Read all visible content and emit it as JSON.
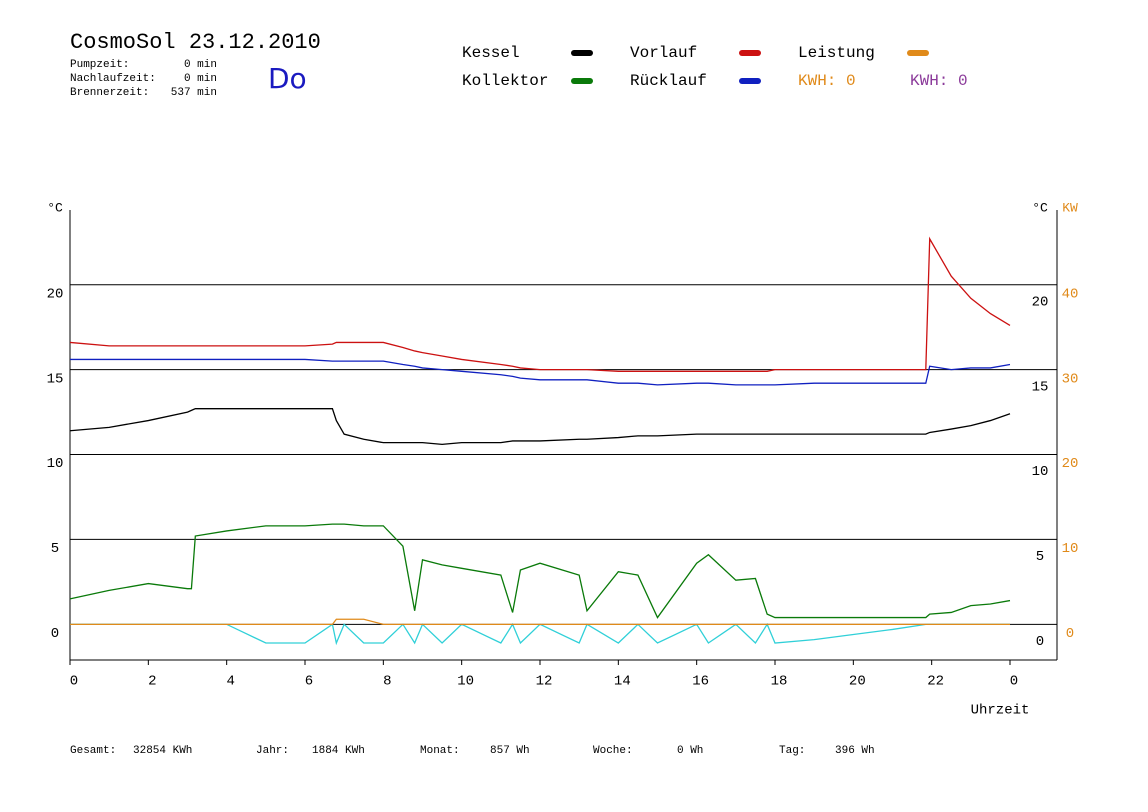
{
  "header": {
    "title": "CosmoSol 23.12.2010",
    "day": "Do",
    "stats": [
      {
        "label": "Pumpzeit:",
        "value": "0 min"
      },
      {
        "label": "Nachlaufzeit:",
        "value": "0 min"
      },
      {
        "label": "Brennerzeit:",
        "value": "537 min"
      }
    ]
  },
  "footer": [
    {
      "label": "Gesamt:",
      "value": "32854 KWh"
    },
    {
      "label": "Jahr:",
      "value": "1884 KWh"
    },
    {
      "label": "Monat:",
      "value": "857 Wh"
    },
    {
      "label": "Woche:",
      "value": "0 Wh"
    },
    {
      "label": "Tag:",
      "value": "396 Wh"
    }
  ],
  "kwh_labels": [
    {
      "text": "KWH: 0",
      "color": "#e08a1a"
    },
    {
      "text": "KWH: 0",
      "color": "#8b3a9a"
    }
  ],
  "chart_data": {
    "type": "line",
    "ylabel": "°C",
    "y2label_left": "°C",
    "y2label": "KW",
    "xlabel": "Uhrzeit",
    "x": [
      0,
      1,
      2,
      3,
      3.1,
      3.2,
      4,
      5,
      6,
      6.7,
      6.8,
      7,
      7.5,
      8,
      8.5,
      8.8,
      9,
      9.5,
      10,
      11,
      11.3,
      11.5,
      12,
      13,
      13.2,
      14,
      14.5,
      15,
      16,
      16.3,
      17,
      17.5,
      17.8,
      18,
      19,
      20,
      21,
      21.85,
      21.95,
      22.5,
      23,
      23.5,
      24
    ],
    "xlim": [
      0,
      25.2
    ],
    "xticks": [
      0,
      2,
      4,
      6,
      8,
      10,
      12,
      14,
      16,
      18,
      20,
      22,
      {
        "value": 24,
        "label": "0"
      }
    ],
    "ylim": [
      -2.1,
      24.4
    ],
    "yticks": [
      0,
      5,
      10,
      15,
      20
    ],
    "y2lim": [
      -4.2,
      48.8
    ],
    "y2ticks": [
      0,
      10,
      20,
      30,
      40
    ],
    "y2color": "#e08a1a",
    "grid": true,
    "series": [
      {
        "name": "Kessel",
        "color": "#000000",
        "values": [
          11.4,
          11.6,
          12.0,
          12.5,
          12.6,
          12.7,
          12.7,
          12.7,
          12.7,
          12.7,
          12.0,
          11.2,
          10.9,
          10.7,
          10.7,
          10.7,
          10.7,
          10.6,
          10.7,
          10.7,
          10.8,
          10.8,
          10.8,
          10.9,
          10.9,
          11.0,
          11.1,
          11.1,
          11.2,
          11.2,
          11.2,
          11.2,
          11.2,
          11.2,
          11.2,
          11.2,
          11.2,
          11.2,
          11.3,
          11.5,
          11.7,
          12.0,
          12.4
        ]
      },
      {
        "name": "Kollektor",
        "color": "#0a7a0a",
        "values": [
          1.5,
          2.0,
          2.4,
          2.1,
          2.1,
          5.2,
          5.5,
          5.8,
          5.8,
          5.9,
          5.9,
          5.9,
          5.8,
          5.8,
          4.6,
          0.8,
          3.8,
          3.5,
          3.3,
          2.9,
          0.7,
          3.2,
          3.6,
          2.9,
          0.8,
          3.1,
          2.9,
          0.4,
          3.6,
          4.1,
          2.6,
          2.7,
          0.6,
          0.4,
          0.4,
          0.4,
          0.4,
          0.4,
          0.6,
          0.7,
          1.1,
          1.2,
          1.4
        ]
      },
      {
        "name": "Vorlauf",
        "color": "#cc1111",
        "values": [
          16.6,
          16.4,
          16.4,
          16.4,
          16.4,
          16.4,
          16.4,
          16.4,
          16.4,
          16.5,
          16.6,
          16.6,
          16.6,
          16.6,
          16.3,
          16.1,
          16.0,
          15.8,
          15.6,
          15.3,
          15.2,
          15.1,
          15.0,
          15.0,
          15.0,
          14.9,
          14.9,
          14.9,
          14.9,
          14.9,
          14.9,
          14.9,
          14.9,
          15.0,
          15.0,
          15.0,
          15.0,
          15.0,
          22.7,
          20.5,
          19.2,
          18.3,
          17.6
        ]
      },
      {
        "name": "Rücklauf",
        "color": "#1020c0",
        "values": [
          15.6,
          15.6,
          15.6,
          15.6,
          15.6,
          15.6,
          15.6,
          15.6,
          15.6,
          15.5,
          15.5,
          15.5,
          15.5,
          15.5,
          15.3,
          15.2,
          15.1,
          15.0,
          14.9,
          14.7,
          14.6,
          14.5,
          14.4,
          14.4,
          14.4,
          14.2,
          14.2,
          14.1,
          14.2,
          14.2,
          14.1,
          14.1,
          14.1,
          14.1,
          14.2,
          14.2,
          14.2,
          14.2,
          15.2,
          15.0,
          15.1,
          15.1,
          15.3
        ]
      },
      {
        "name": "Leistung",
        "color": "#e08a1a",
        "axis": "y2",
        "values": [
          0,
          0,
          0,
          0,
          0,
          0,
          0,
          0,
          0,
          0,
          0.6,
          0.6,
          0.6,
          0,
          0,
          0,
          0,
          0,
          0,
          0,
          0,
          0,
          0,
          0,
          0,
          0,
          0,
          0,
          0,
          0,
          0,
          0,
          0,
          0,
          0,
          0,
          0,
          0,
          0,
          0,
          0,
          0,
          0
        ]
      },
      {
        "color": "#30d0d8",
        "values": [
          0,
          0,
          0,
          0,
          0,
          0,
          0,
          -1.1,
          -1.1,
          0,
          -1.1,
          0,
          -1.1,
          -1.1,
          0,
          -1.1,
          0,
          -1.1,
          0,
          -1.1,
          0,
          -1.1,
          0,
          -1.1,
          0,
          -1.1,
          0,
          -1.1,
          0,
          -1.1,
          0,
          -1.1,
          0,
          -1.1,
          -0.9,
          -0.6,
          -0.3,
          0,
          0,
          0,
          0,
          0,
          0
        ]
      }
    ]
  }
}
